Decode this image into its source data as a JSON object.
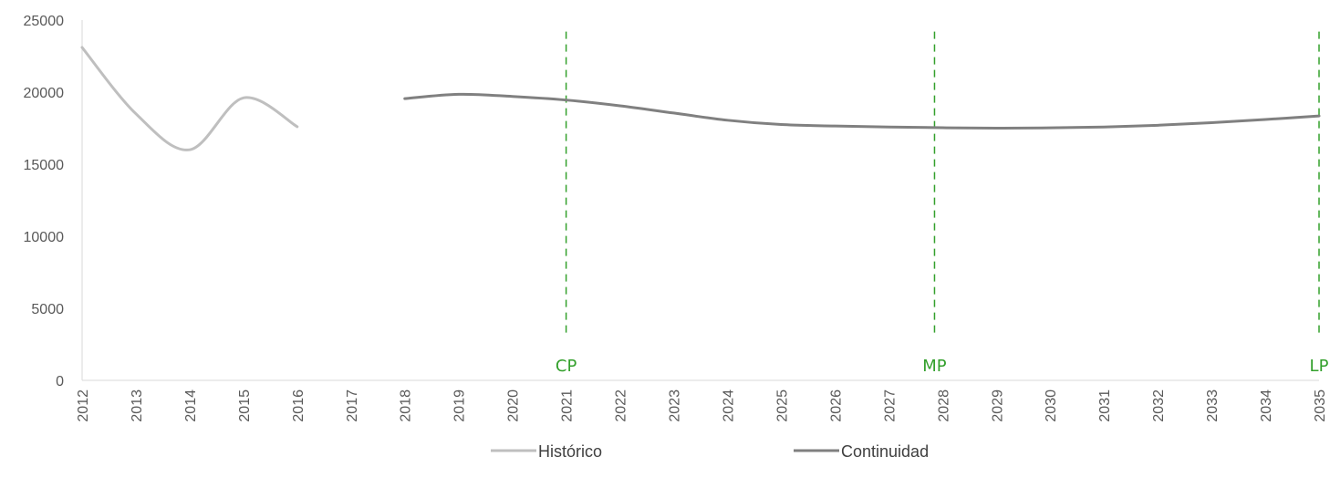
{
  "chart_data": {
    "type": "line",
    "title": "",
    "xlabel": "",
    "ylabel": "",
    "x_range": [
      2012,
      2035
    ],
    "ylim": [
      0,
      25000
    ],
    "y_ticks": [
      0,
      5000,
      10000,
      15000,
      20000,
      25000
    ],
    "x_ticks": [
      2012,
      2013,
      2014,
      2015,
      2016,
      2017,
      2018,
      2019,
      2020,
      2021,
      2022,
      2023,
      2024,
      2025,
      2026,
      2027,
      2028,
      2029,
      2030,
      2031,
      2032,
      2033,
      2034,
      2035
    ],
    "x_tick_orientation": "vertical",
    "grid": false,
    "legend_position": "bottom",
    "series": [
      {
        "name": "Histórico",
        "color": "#bfbfbf",
        "smooth": true,
        "points": [
          {
            "x": 2012,
            "y": 23100
          },
          {
            "x": 2013,
            "y": 18500
          },
          {
            "x": 2014,
            "y": 16000
          },
          {
            "x": 2015,
            "y": 19600
          },
          {
            "x": 2016,
            "y": 17600
          }
        ]
      },
      {
        "name": "Continuidad",
        "color": "#808080",
        "smooth": true,
        "points": [
          {
            "x": 2018,
            "y": 19550
          },
          {
            "x": 2019,
            "y": 19850
          },
          {
            "x": 2020,
            "y": 19700
          },
          {
            "x": 2021,
            "y": 19450
          },
          {
            "x": 2022,
            "y": 19050
          },
          {
            "x": 2023,
            "y": 18550
          },
          {
            "x": 2024,
            "y": 18050
          },
          {
            "x": 2025,
            "y": 17750
          },
          {
            "x": 2026,
            "y": 17650
          },
          {
            "x": 2027,
            "y": 17580
          },
          {
            "x": 2028,
            "y": 17530
          },
          {
            "x": 2029,
            "y": 17500
          },
          {
            "x": 2030,
            "y": 17520
          },
          {
            "x": 2031,
            "y": 17580
          },
          {
            "x": 2032,
            "y": 17700
          },
          {
            "x": 2033,
            "y": 17880
          },
          {
            "x": 2034,
            "y": 18100
          },
          {
            "x": 2035,
            "y": 18350
          }
        ]
      }
    ],
    "reference_lines": [
      {
        "label": "CP",
        "x": 2021,
        "y_from": 3000,
        "y_to": 24200,
        "color": "#33a02c",
        "style": "dashed"
      },
      {
        "label": "MP",
        "x": 2027.85,
        "y_from": 3000,
        "y_to": 24200,
        "color": "#33a02c",
        "style": "dashed"
      },
      {
        "label": "LP",
        "x": 2035,
        "y_from": 3000,
        "y_to": 24200,
        "color": "#33a02c",
        "style": "dashed"
      }
    ],
    "axis_color": "#d9d9d9"
  }
}
